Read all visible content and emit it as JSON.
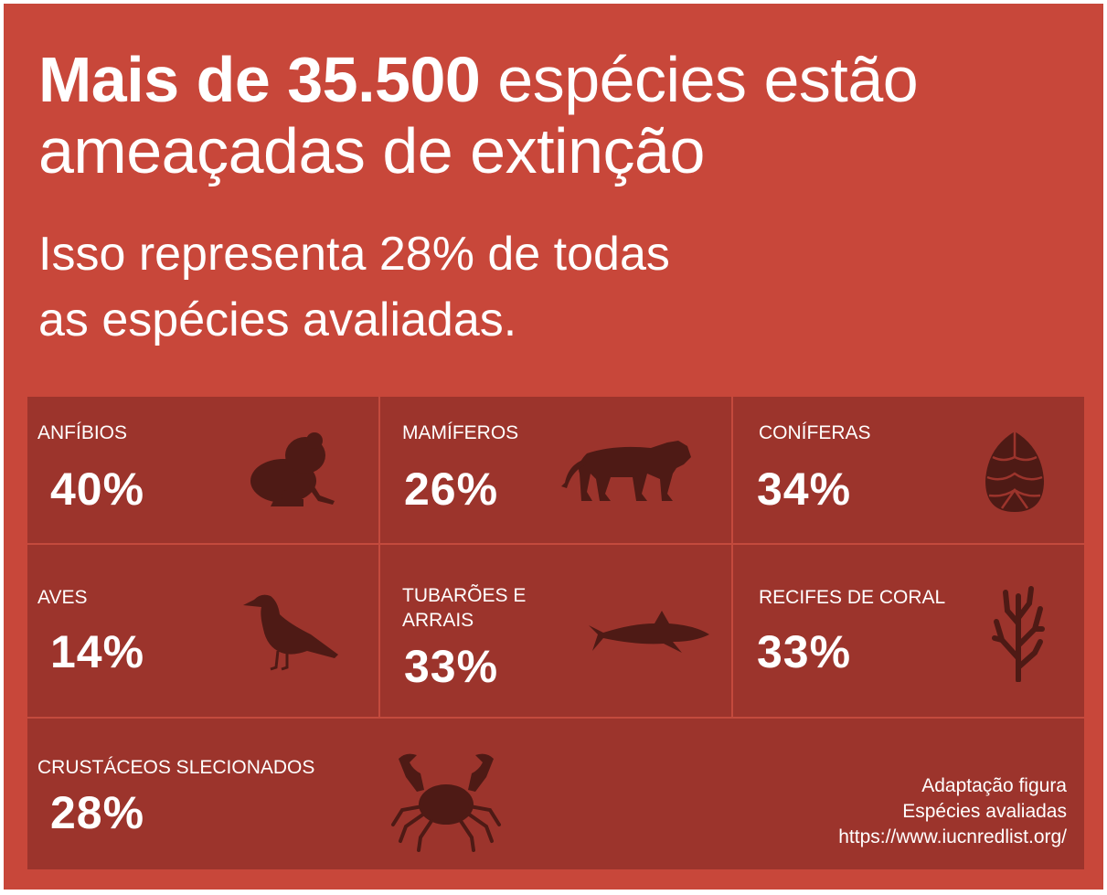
{
  "headline": {
    "bold": "Mais de 35.500",
    "rest_line1": " espécies estão",
    "line2": "ameaçadas de extinção"
  },
  "subline": {
    "line1": "Isso representa 28% de todas",
    "line2": "as espécies avaliadas."
  },
  "categories": [
    {
      "label": "ANFÍBIOS",
      "value": "40%",
      "icon": "frog-icon"
    },
    {
      "label": "MAMÍFEROS",
      "value": "26%",
      "icon": "tiger-icon"
    },
    {
      "label": "CONÍFERAS",
      "value": "34%",
      "icon": "pine-cone-icon"
    },
    {
      "label": "AVES",
      "value": "14%",
      "icon": "bird-icon"
    },
    {
      "label_line1": "TUBARÕES E",
      "label_line2": "ARRAIS",
      "value": "33%",
      "icon": "shark-icon"
    },
    {
      "label": "RECIFES DE CORAL",
      "value": "33%",
      "icon": "coral-icon"
    },
    {
      "label": "CRUSTÁCEOS SLECIONADOS",
      "value": "28%",
      "icon": "crab-icon"
    }
  ],
  "credit": {
    "line1": "Adaptação figura",
    "line2": "Espécies avaliadas",
    "line3": "https://www.iucnredlist.org/"
  },
  "colors": {
    "background": "#c8473a",
    "panel": "#9c342c",
    "divider": "#c34a3d",
    "silhouette": "#4e1a15",
    "text": "#ffffff"
  }
}
